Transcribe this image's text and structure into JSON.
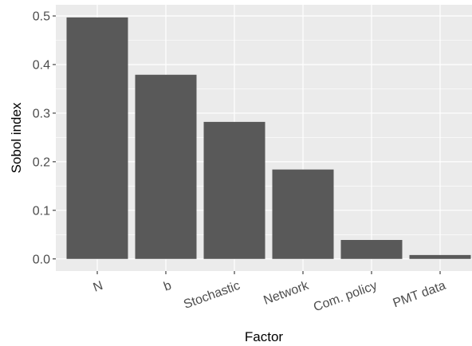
{
  "chart_data": {
    "type": "bar",
    "categories": [
      "N",
      "b",
      "Stochastic",
      "Network",
      "Com. policy",
      "PMT data"
    ],
    "values": [
      0.497,
      0.379,
      0.282,
      0.184,
      0.039,
      0.008
    ],
    "title": "",
    "xlabel": "Factor",
    "ylabel": "Sobol index",
    "ylim": [
      -0.025,
      0.523
    ],
    "yticks": [
      0.0,
      0.1,
      0.2,
      0.3,
      0.4,
      0.5
    ],
    "ytick_labels": [
      "0.0",
      "0.1",
      "0.2",
      "0.3",
      "0.4",
      "0.5"
    ],
    "grid": true,
    "colors": {
      "panel": "#ebebeb",
      "grid_major": "#ffffff",
      "bar": "#595959",
      "tick_text": "#4d4d4d",
      "tick_mark": "#333333"
    }
  }
}
